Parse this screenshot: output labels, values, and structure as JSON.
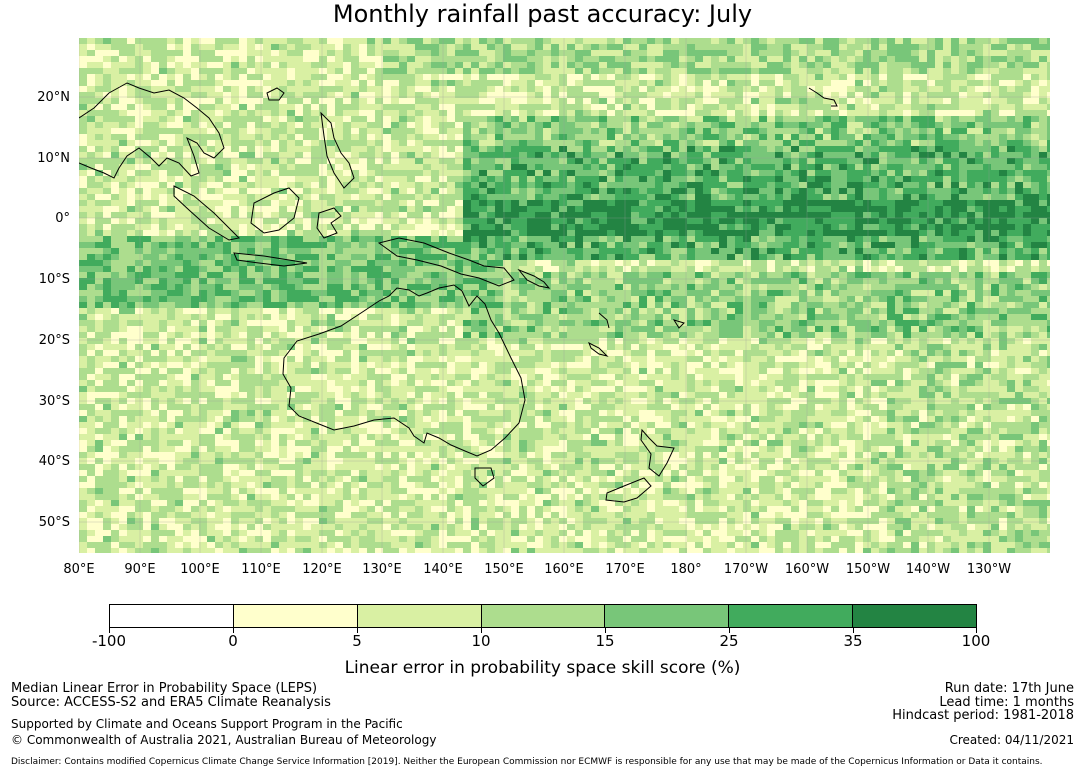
{
  "title": "Monthly rainfall past accuracy: July",
  "map": {
    "lat_labels": [
      "20°N",
      "10°N",
      "0°",
      "10°S",
      "20°S",
      "30°S",
      "40°S",
      "50°S"
    ],
    "lon_labels": [
      "80°E",
      "90°E",
      "100°E",
      "110°E",
      "120°E",
      "130°E",
      "140°E",
      "150°E",
      "160°E",
      "170°E",
      "180°",
      "170°W",
      "160°W",
      "150°W",
      "140°W",
      "130°W"
    ]
  },
  "colorbar": {
    "ticks": [
      "-100",
      "0",
      "5",
      "10",
      "15",
      "25",
      "35",
      "100"
    ],
    "colors": [
      "#ffffff",
      "#ffffcc",
      "#d9f0a3",
      "#addd8e",
      "#78c679",
      "#41ab5d",
      "#238443"
    ],
    "label": "Linear error in probability space skill score (%)"
  },
  "footer": {
    "metric": "Median Linear Error in Probability Space (LEPS)",
    "source": "Source: ACCESS-S2 and ERA5 Climate Reanalysis",
    "support": "Supported by Climate and Oceans Support Program in the Pacific",
    "copyright": "© Commonwealth of Australia 2021, Australian Bureau of Meteorology",
    "run_date": "Run date: 17th June",
    "lead_time": "Lead time: 1 months",
    "hindcast": "Hindcast period: 1981-2018",
    "created": "Created: 04/11/2021",
    "disclaimer": "Disclaimer: Contains modified Copernicus Climate Change Service Information [2019]. Neither the European Commission nor ECMWF is responsible for any use that may be made of the Copernicus Information or Data it contains."
  }
}
